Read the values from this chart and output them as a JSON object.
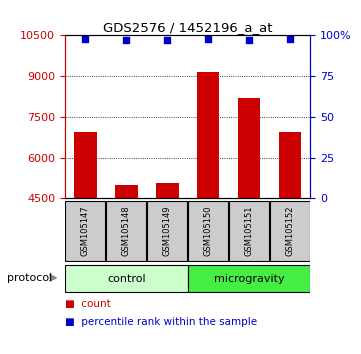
{
  "title": "GDS2576 / 1452196_a_at",
  "samples": [
    "GSM105147",
    "GSM105148",
    "GSM105149",
    "GSM105150",
    "GSM105151",
    "GSM105152"
  ],
  "counts": [
    6950,
    5000,
    5050,
    9150,
    8200,
    6950
  ],
  "percentile_ranks": [
    98,
    97,
    97,
    98,
    97,
    98
  ],
  "ylim_left": [
    4500,
    10500
  ],
  "ylim_right": [
    0,
    100
  ],
  "yticks_left": [
    4500,
    6000,
    7500,
    9000,
    10500
  ],
  "yticks_right": [
    0,
    25,
    50,
    75,
    100
  ],
  "ytick_labels_right": [
    "0",
    "25",
    "50",
    "75",
    "100%"
  ],
  "grid_values": [
    6000,
    7500,
    9000
  ],
  "bar_color": "#cc0000",
  "dot_color": "#0000cc",
  "bar_bottom": 4500,
  "groups": [
    {
      "label": "control",
      "start": 0,
      "end": 2,
      "color": "#ccffcc"
    },
    {
      "label": "microgravity",
      "start": 3,
      "end": 5,
      "color": "#44ee44"
    }
  ],
  "protocol_label": "protocol",
  "legend_items": [
    {
      "color": "#cc0000",
      "label": "count"
    },
    {
      "color": "#0000cc",
      "label": "percentile rank within the sample"
    }
  ],
  "left_tick_color": "#cc0000",
  "right_tick_color": "#0000cc",
  "sample_box_color": "#cccccc",
  "sample_box_edge_color": "#000000"
}
